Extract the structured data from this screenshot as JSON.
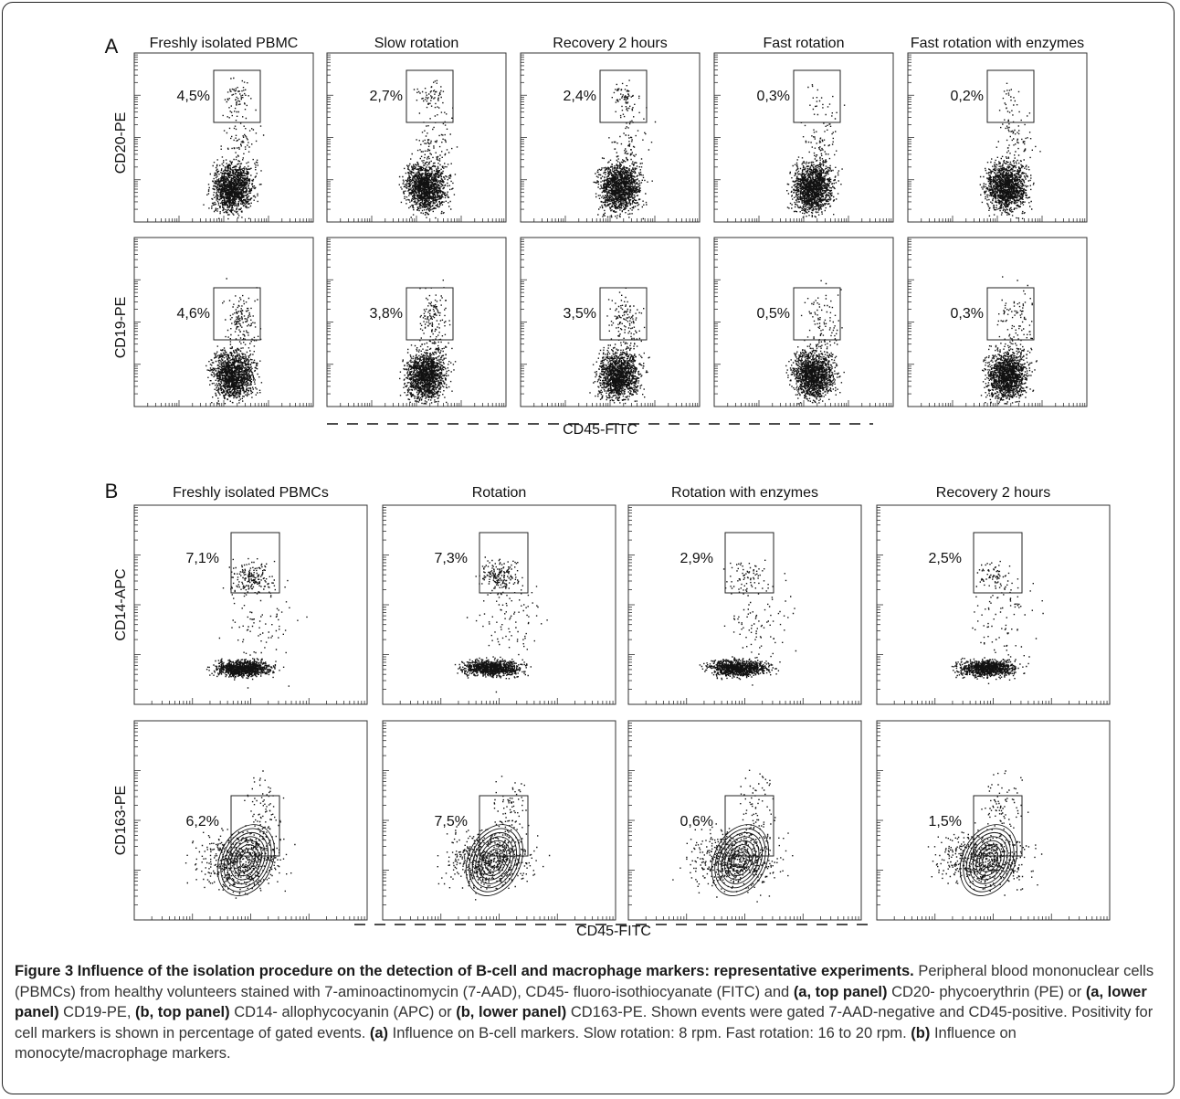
{
  "panel_a": {
    "letter": "A",
    "column_titles": [
      "Freshly isolated PBMC",
      "Slow rotation",
      "Recovery 2 hours",
      "Fast rotation",
      "Fast rotation with enzymes"
    ],
    "rows": [
      {
        "ylabel": "CD20-PE",
        "percentages": [
          "4,5%",
          "2,7%",
          "2,4%",
          "0,3%",
          "0,2%"
        ]
      },
      {
        "ylabel": "CD19-PE",
        "percentages": [
          "4,6%",
          "3,8%",
          "3,5%",
          "0,5%",
          "0,3%"
        ]
      }
    ],
    "xlabel": "CD45-FITC"
  },
  "panel_b": {
    "letter": "B",
    "column_titles": [
      "Freshly isolated PBMCs",
      "Rotation",
      "Rotation with enzymes",
      "Recovery 2 hours"
    ],
    "rows": [
      {
        "ylabel": "CD14-APC",
        "percentages": [
          "7,1%",
          "7,3%",
          "2,9%",
          "2,5%"
        ]
      },
      {
        "ylabel": "CD163-PE",
        "percentages": [
          "6,2%",
          "7,5%",
          "0,6%",
          "1,5%"
        ]
      }
    ],
    "xlabel": "CD45-FITC"
  },
  "chart_data": [
    {
      "type": "scatter",
      "panel": "A",
      "x_axis_label": "CD45-FITC",
      "columns": [
        "Freshly isolated PBMC",
        "Slow rotation",
        "Recovery 2 hours",
        "Fast rotation",
        "Fast rotation with enzymes"
      ],
      "series": [
        {
          "name": "CD20-PE",
          "gated_percent": [
            4.5,
            2.7,
            2.4,
            0.3,
            0.2
          ]
        },
        {
          "name": "CD19-PE",
          "gated_percent": [
            4.6,
            3.8,
            3.5,
            0.5,
            0.3
          ]
        }
      ]
    },
    {
      "type": "scatter",
      "panel": "B",
      "x_axis_label": "CD45-FITC",
      "columns": [
        "Freshly isolated PBMCs",
        "Rotation",
        "Rotation with enzymes",
        "Recovery 2 hours"
      ],
      "series": [
        {
          "name": "CD14-APC",
          "gated_percent": [
            7.1,
            7.3,
            2.9,
            2.5
          ]
        },
        {
          "name": "CD163-PE",
          "gated_percent": [
            6.2,
            7.5,
            0.6,
            1.5
          ]
        }
      ]
    }
  ],
  "caption": {
    "title": "Figure 3 Influence of the isolation procedure on the detection of B-cell and macrophage markers: representative experiments",
    "title_end": ".",
    "s1": "Peripheral blood mononuclear cells (PBMCs) from healthy volunteers stained with 7-aminoactinomycin (7-AAD), CD45- fluoro-isothiocyanate (FITC) and ",
    "b1": "(a, top panel)",
    "s2": " CD20- phycoerythrin (PE) or ",
    "b2": "(a, lower panel)",
    "s3": " CD19-PE, ",
    "b3": "(b, top panel)",
    "s4": " CD14- allophycocyanin (APC) or ",
    "b4": "(b, lower panel)",
    "s5": " CD163-PE. Shown events were gated 7-AAD-negative and CD45-positive. Positivity for cell markers is shown in percentage of gated events. ",
    "b5": "(a)",
    "s6": " Influence on B-cell markers. Slow rotation: 8 rpm. Fast rotation: 16 to 20 rpm. ",
    "b6": "(b)",
    "s7": " Influence on monocyte/macrophage markers."
  },
  "colors": {
    "frame": "#222222",
    "dots": "#111111",
    "caption_text": "#333333"
  }
}
